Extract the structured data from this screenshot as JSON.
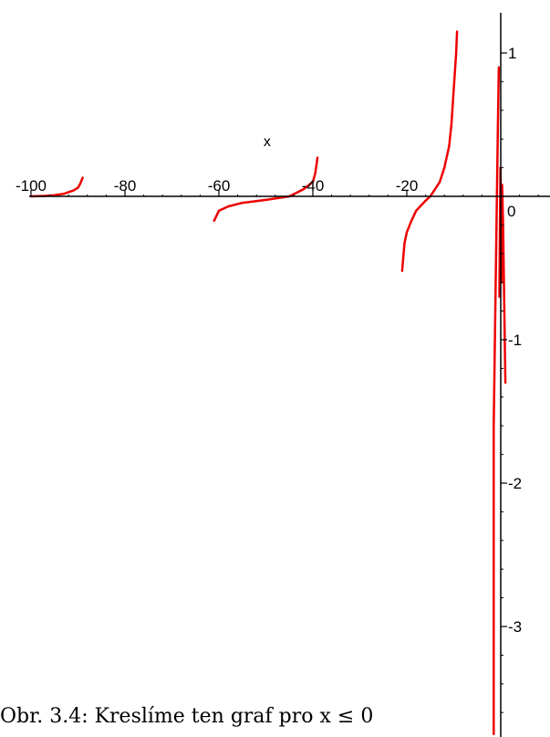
{
  "chart_data": {
    "type": "line",
    "title": "",
    "xlabel": "x",
    "ylabel": "",
    "xlim": [
      -100,
      9
    ],
    "ylim": [
      -3.75,
      1.22
    ],
    "x_ticks": [
      -100,
      -80,
      -60,
      -40,
      -20,
      0
    ],
    "x_tick_labels": [
      "-100",
      "-80",
      "-60",
      "-40",
      "-20",
      "0"
    ],
    "y_ticks": [
      1,
      -1,
      -2,
      -3
    ],
    "y_tick_labels": [
      "1",
      "-1",
      "-2",
      "-3"
    ],
    "grid": false,
    "line_color": "#ee0000",
    "series": [
      {
        "points": [
          [
            -100,
            0.0
          ],
          [
            -97,
            0.003
          ],
          [
            -95,
            0.008
          ],
          [
            -93,
            0.018
          ],
          [
            -91,
            0.04
          ],
          [
            -90,
            0.06
          ],
          [
            -89.5,
            0.09
          ],
          [
            -89,
            0.13
          ]
        ]
      },
      {
        "points": [
          [
            -61,
            -0.17
          ],
          [
            -60,
            -0.1
          ],
          [
            -58,
            -0.07
          ],
          [
            -55,
            -0.045
          ],
          [
            -50,
            -0.025
          ],
          [
            -45,
            0.0
          ],
          [
            -42,
            0.05
          ],
          [
            -40,
            0.1
          ],
          [
            -39.5,
            0.16
          ],
          [
            -39,
            0.27
          ]
        ]
      },
      {
        "points": [
          [
            -21,
            -0.52
          ],
          [
            -20.5,
            -0.33
          ],
          [
            -20,
            -0.25
          ],
          [
            -19,
            -0.17
          ],
          [
            -18,
            -0.1
          ],
          [
            -16,
            -0.03
          ],
          [
            -15,
            0.0
          ],
          [
            -13,
            0.1
          ],
          [
            -12,
            0.2
          ],
          [
            -11,
            0.35
          ],
          [
            -10.5,
            0.5
          ],
          [
            -10,
            0.75
          ],
          [
            -9.5,
            1.0
          ],
          [
            -9.3,
            1.15
          ]
        ]
      },
      {
        "points": [
          [
            -1.5,
            -3.75
          ],
          [
            -1.5,
            -1.6
          ],
          [
            -1.2,
            -0.9
          ],
          [
            -1.0,
            -0.4
          ],
          [
            -0.8,
            0.05
          ],
          [
            -0.6,
            0.5
          ],
          [
            -0.4,
            0.9
          ]
        ]
      },
      {
        "points": [
          [
            -0.3,
            -0.7
          ],
          [
            -0.2,
            -0.3
          ],
          [
            -0.05,
            0.2
          ],
          [
            0.1,
            -0.2
          ],
          [
            0.2,
            -0.6
          ]
        ]
      },
      {
        "points": [
          [
            0.3,
            0.08
          ],
          [
            0.5,
            -0.2
          ],
          [
            0.7,
            -0.65
          ],
          [
            1.0,
            -1.3
          ]
        ]
      }
    ]
  },
  "caption": "Obr. 3.4: Kreslíme ten graf pro x ≤ 0"
}
